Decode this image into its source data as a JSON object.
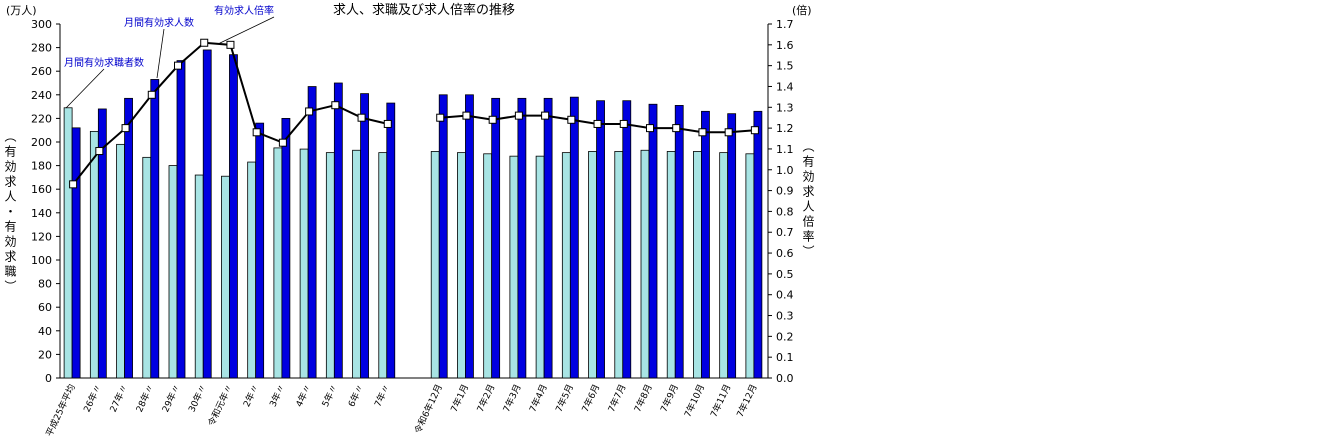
{
  "chart_data": {
    "type": "bar",
    "title": "求人、求職及び求人倍率の推移",
    "y_unit": "(万人)",
    "y2_unit": "(倍)",
    "ylabel": "（有効求人・有効求職）",
    "y2label": "（有効求人倍率）",
    "annotations": [
      "月間有効求職者数",
      "月間有効求人数",
      "有効求人倍率"
    ],
    "categories": [
      "平成25年平均",
      "26年〃",
      "27年〃",
      "28年〃",
      "29年〃",
      "30年〃",
      "令和元年〃",
      "2年〃",
      "3年〃",
      "4年〃",
      "5年〃",
      "6年〃",
      "7年〃",
      null,
      "令和6年12月",
      "7年1月",
      "7年2月",
      "7年3月",
      "7年4月",
      "7年5月",
      "7年6月",
      "7年7月",
      "7年8月",
      "7年9月",
      "7年10月",
      "7年11月",
      "7年12月"
    ],
    "series": [
      {
        "name": "月間有効求職者数",
        "color": "#a8e4e4",
        "values": [
          229,
          209,
          198,
          187,
          180,
          172,
          171,
          183,
          195,
          194,
          191,
          193,
          191,
          null,
          192,
          191,
          190,
          188,
          188,
          191,
          192,
          192,
          193,
          192,
          192,
          191,
          190
        ]
      },
      {
        "name": "月間有効求人数",
        "color": "#0000e0",
        "values": [
          212,
          228,
          237,
          253,
          269,
          278,
          274,
          216,
          220,
          247,
          250,
          241,
          233,
          null,
          240,
          240,
          237,
          237,
          237,
          238,
          235,
          235,
          232,
          231,
          226,
          224,
          226
        ]
      },
      {
        "name": "有効求人倍率",
        "color": "#000000",
        "type": "line",
        "axis": "y2",
        "values": [
          0.93,
          1.09,
          1.2,
          1.36,
          1.5,
          1.61,
          1.6,
          1.18,
          1.13,
          1.28,
          1.31,
          1.25,
          1.22,
          null,
          1.25,
          1.26,
          1.24,
          1.26,
          1.26,
          1.24,
          1.22,
          1.22,
          1.2,
          1.2,
          1.18,
          1.18,
          1.19
        ]
      }
    ],
    "ylim": [
      0,
      300
    ],
    "yticks": [
      0,
      20,
      40,
      60,
      80,
      100,
      120,
      140,
      160,
      180,
      200,
      220,
      240,
      260,
      280,
      300
    ],
    "y2lim": [
      0,
      1.7
    ],
    "y2ticks": [
      {
        "value": 0,
        "label": "0.0"
      },
      0.1,
      0.2,
      0.3,
      0.4,
      0.5,
      0.6,
      0.7,
      0.8,
      0.9,
      {
        "value": 1,
        "label": "1.0"
      },
      1.1,
      1.2,
      1.3,
      1.4,
      1.5,
      1.6,
      1.7
    ]
  }
}
